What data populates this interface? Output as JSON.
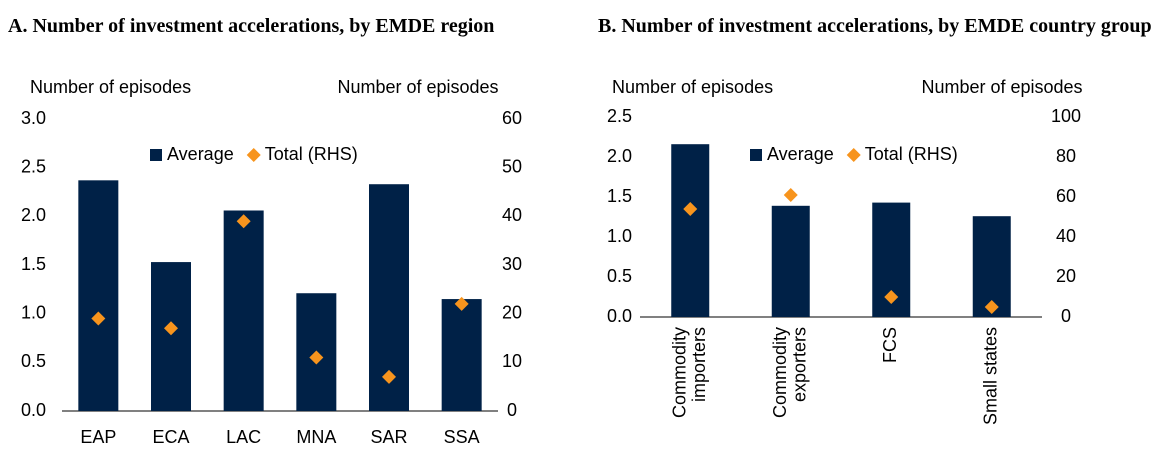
{
  "chart_data": [
    {
      "type": "bar",
      "title": "A. Number of investment accelerations, by EMDE region",
      "y_label": "Number of episodes",
      "y2_label": "Number of episodes",
      "categories": [
        "EAP",
        "ECA",
        "LAC",
        "MNA",
        "SAR",
        "SSA"
      ],
      "series": [
        {
          "name": "Average",
          "type": "bar",
          "color": "#002147",
          "values": [
            2.37,
            1.53,
            2.06,
            1.21,
            2.33,
            1.15
          ]
        },
        {
          "name": "Total (RHS)",
          "type": "scatter",
          "axis": "y2",
          "color": "#f7941d",
          "values": [
            19,
            17,
            39,
            11,
            7,
            22
          ]
        }
      ],
      "ylim": [
        0,
        3
      ],
      "yticks": [
        {
          "value": 0,
          "label": "0.0"
        },
        0.5,
        {
          "value": 1,
          "label": "1.0"
        },
        1.5,
        {
          "value": 2,
          "label": "2.0"
        },
        2.5,
        {
          "value": 3,
          "label": "3.0"
        }
      ],
      "y2lim": [
        0,
        60
      ],
      "y2ticks": [
        0,
        10,
        20,
        30,
        40,
        50,
        60
      ],
      "legend": "top"
    },
    {
      "type": "bar",
      "title": "B. Number of investment accelerations, by EMDE country group",
      "y_label": "Number of episodes",
      "y2_label": "Number of episodes",
      "categories": [
        "Commodity importers",
        "Commodity exporters",
        "FCS",
        "Small states"
      ],
      "series": [
        {
          "name": "Average",
          "type": "bar",
          "color": "#002147",
          "values": [
            2.16,
            1.39,
            1.43,
            1.26
          ]
        },
        {
          "name": "Total (RHS)",
          "type": "scatter",
          "axis": "y2",
          "color": "#f7941d",
          "values": [
            54,
            61,
            10,
            5
          ]
        }
      ],
      "ylim": [
        0,
        2.5
      ],
      "yticks": [
        {
          "value": 0,
          "label": "0.0"
        },
        0.5,
        {
          "value": 1,
          "label": "1.0"
        },
        1.5,
        {
          "value": 2,
          "label": "2.0"
        },
        2.5
      ],
      "y2lim": [
        0,
        100
      ],
      "y2ticks": [
        0,
        20,
        40,
        60,
        80,
        100
      ],
      "legend": "top",
      "rotate_labels": true
    }
  ]
}
